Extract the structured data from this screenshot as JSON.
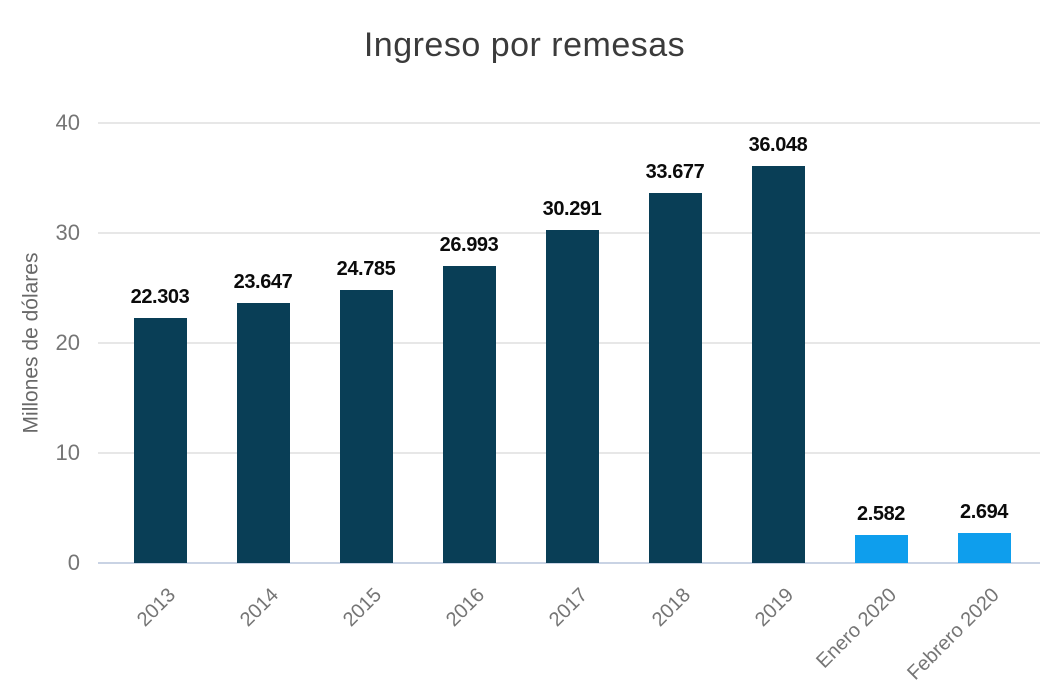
{
  "chart_data": {
    "type": "bar",
    "title": "Ingreso por remesas",
    "ylabel": "Millones de dólares",
    "xlabel": "",
    "categories": [
      "2013",
      "2014",
      "2015",
      "2016",
      "2017",
      "2018",
      "2019",
      "Enero 2020",
      "Febrero 2020"
    ],
    "values": [
      22.303,
      23.647,
      24.785,
      26.993,
      30.291,
      33.677,
      36.048,
      2.582,
      2.694
    ],
    "value_labels": [
      "22.303",
      "23.647",
      "24.785",
      "26.993",
      "30.291",
      "33.677",
      "36.048",
      "2.582",
      "2.694"
    ],
    "bar_colors": [
      "#093e56",
      "#093e56",
      "#093e56",
      "#093e56",
      "#093e56",
      "#093e56",
      "#093e56",
      "#0e9eed",
      "#0e9eed"
    ],
    "ylim": [
      0,
      40
    ],
    "yticks": [
      0,
      10,
      20,
      30,
      40
    ],
    "grid": true,
    "legend_position": "none",
    "accent_colors": {
      "year_bar": "#093e56",
      "month_bar": "#0e9eed",
      "gridline": "#e7e7e7",
      "zero_axis_line": "#c9d3e4",
      "tick_text": "#757575",
      "title_text": "#3b3b3b",
      "value_label_text": "#0b0b0b"
    }
  }
}
